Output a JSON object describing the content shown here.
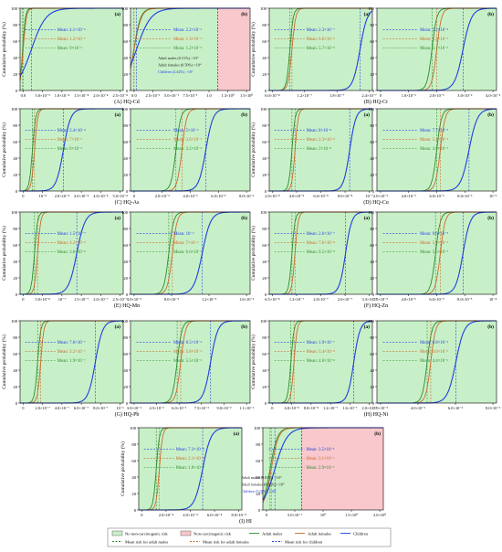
{
  "colors": {
    "no_risk_bg": "#c8f0c8",
    "risk_bg": "#f8c8cc",
    "adult_males": "#2e8b2e",
    "adult_females": "#cc6a2a",
    "children": "#1f3fdf",
    "threshold": "#111111"
  },
  "shared": {
    "ylabel": "Cumulative probability (%)",
    "yticks": [
      "0",
      "20",
      "40",
      "60",
      "80",
      "100"
    ]
  },
  "legend": {
    "items": [
      {
        "label": "No non-carcinogenic risk",
        "kind": "fill-green"
      },
      {
        "label": "Non-carcinogenic risk",
        "kind": "fill-pink"
      },
      {
        "label": "Adult males",
        "kind": "line-green"
      },
      {
        "label": "Adult females",
        "kind": "line-orange"
      },
      {
        "label": "Children",
        "kind": "line-blue"
      },
      {
        "label": "Mean risk for adult males",
        "kind": "dash-green"
      },
      {
        "label": "Mean risk for adult females",
        "kind": "dash-orange"
      },
      {
        "label": "Mean risk for children",
        "kind": "dash-blue"
      }
    ]
  },
  "chart_data": [
    {
      "caption": "(A) HQ-Cd",
      "panel": "(a)",
      "type": "line",
      "xticks": [
        "0.0",
        "5.0×10⁻⁵",
        "1.0×10⁻⁴",
        "1.5×10⁻⁴",
        "2.0×10⁻⁴",
        "2.5×10⁻⁴"
      ],
      "means": [
        {
          "label": "Mean: 4.1×10⁻⁶",
          "cls": "c"
        },
        {
          "label": "Mean: 1.2×10⁻⁶",
          "cls": "f"
        },
        {
          "label": "Mean: 9×10⁻⁶",
          "cls": "m"
        }
      ]
    },
    {
      "caption": "",
      "panel": "(b)",
      "type": "line",
      "xticks": [
        "0.0",
        "2.5×10⁻¹",
        "5.0×10⁻¹",
        "7.5×10⁻¹",
        "1.0",
        "1.3×10⁰",
        "1.5×10⁰"
      ],
      "means": [
        {
          "label": "Mean: 2.2×10⁻²",
          "cls": "c"
        },
        {
          "label": "Mean: 1.3×10⁻²",
          "cls": "f"
        },
        {
          "label": "Mean: 1.2×10⁻²",
          "cls": "m"
        }
      ],
      "risk": [
        "Adult males (0.31%) >10⁰",
        "Adult females (0.50%) >10⁰",
        "Children (2.42%) >10⁰"
      ]
    },
    {
      "caption": "(B) HQ-Cr",
      "panel": "(a)",
      "type": "line",
      "xticks": [
        "6.0×10⁻⁸",
        "1.2×10⁻⁷",
        "1.8×10⁻⁷",
        "2.4×10⁻⁷"
      ],
      "means": [
        {
          "label": "Mean: 2.3×10⁻⁷",
          "cls": "c"
        },
        {
          "label": "Mean: 6.6×10⁻⁸",
          "cls": "f"
        },
        {
          "label": "Mean: 5.7×10⁻⁸",
          "cls": "m"
        }
      ]
    },
    {
      "caption": "",
      "panel": "(b)",
      "type": "line",
      "xticks": [
        "0",
        "1.0×10⁻²",
        "2.0×10⁻²",
        "3.0×10⁻²",
        "4.0×10⁻²"
      ],
      "means": [
        {
          "label": "Mean: 3.2×10⁻²",
          "cls": "c"
        },
        {
          "label": "Mean: 2.2×10⁻²",
          "cls": "f"
        },
        {
          "label": "Mean: 2.1×10⁻²",
          "cls": "m"
        }
      ]
    },
    {
      "caption": "(C) HQ-As",
      "panel": "(a)",
      "type": "line",
      "xticks": [
        "0",
        "10⁻⁴",
        "2.0×10⁻⁴",
        "3.0×10⁻⁴",
        "4.0×10⁻⁴",
        "5.0×10⁻⁴"
      ],
      "means": [
        {
          "label": "Mean: 2.4×10⁻⁴",
          "cls": "c"
        },
        {
          "label": "Mean: 7×10⁻⁵",
          "cls": "f"
        },
        {
          "label": "Mean: 6×10⁻⁵",
          "cls": "m"
        }
      ]
    },
    {
      "caption": "",
      "panel": "(b)",
      "type": "line",
      "xticks": [
        "0",
        "2.0×10⁻³",
        "4.0×10⁻³",
        "6.0×10⁻³",
        "8.0×10⁻³"
      ],
      "means": [
        {
          "label": "Mean: 5×10⁻³",
          "cls": "c"
        },
        {
          "label": "Mean: 3.6×10⁻³",
          "cls": "f"
        },
        {
          "label": "Mean: 3.2×10⁻³",
          "cls": "m"
        }
      ]
    },
    {
      "caption": "(D) HQ-Cu",
      "panel": "(a)",
      "type": "line",
      "xticks": [
        "2.0×10⁻⁸",
        "4.0×10⁻⁸",
        "6.0×10⁻⁸",
        "8.0×10⁻⁸",
        "10⁻⁷"
      ],
      "means": [
        {
          "label": "Mean: 8×10⁻⁸",
          "cls": "c"
        },
        {
          "label": "Mean: 2.3×10⁻⁸",
          "cls": "f"
        },
        {
          "label": "Mean: 2×10⁻⁸",
          "cls": "m"
        }
      ]
    },
    {
      "caption": "",
      "panel": "(b)",
      "type": "line",
      "xticks": [
        "2.0×10⁻³",
        "4.0×10⁻³",
        "6.0×10⁻³",
        "8.0×10⁻³",
        "10⁻²"
      ],
      "means": [
        {
          "label": "Mean: 7.7×10⁻³",
          "cls": "c"
        },
        {
          "label": "Mean: 5.2×10⁻³",
          "cls": "f"
        },
        {
          "label": "Mean: 4.9×10⁻³",
          "cls": "m"
        }
      ]
    },
    {
      "caption": "(E) HQ-Mn",
      "panel": "(a)",
      "type": "line",
      "xticks": [
        "0",
        "5.0×10⁻⁸",
        "10⁻⁷",
        "1.5×10⁻⁷",
        "2.0×10⁻⁷",
        "2.5×10⁻⁷"
      ],
      "means": [
        {
          "label": "Mean: 1.5×10⁻⁷",
          "cls": "c"
        },
        {
          "label": "Mean: 4.2×10⁻⁸",
          "cls": "f"
        },
        {
          "label": "Mean: 3.6×10⁻⁸",
          "cls": "m"
        }
      ]
    },
    {
      "caption": "",
      "panel": "(b)",
      "type": "line",
      "xticks": [
        "4.0×10⁻³",
        "8.0×10⁻³",
        "1.2×10⁻²",
        "1.6×10⁻²"
      ],
      "means": [
        {
          "label": "Mean: 10⁻²",
          "cls": "c"
        },
        {
          "label": "Mean: 7×10⁻³",
          "cls": "f"
        },
        {
          "label": "Mean: 6.6×10⁻³",
          "cls": "m"
        }
      ]
    },
    {
      "caption": "(F) HQ-Zn",
      "panel": "(a)",
      "type": "line",
      "xticks": [
        "6.5×10⁻⁸",
        "1.3×10⁻⁷",
        "2.0×10⁻⁷",
        "2.6×10⁻⁷",
        "3.3×10⁻⁷"
      ],
      "means": [
        {
          "label": "Mean: 2.6×10⁻⁷",
          "cls": "c"
        },
        {
          "label": "Mean: 7.6×10⁻⁸",
          "cls": "f"
        },
        {
          "label": "Mean: 6.5×10⁻⁸",
          "cls": "m"
        }
      ]
    },
    {
      "caption": "",
      "panel": "(b)",
      "type": "line",
      "xticks": [
        "2.0×10⁻⁵",
        "4.0×10⁻⁵",
        "6.0×10⁻⁵",
        "8.0×10⁻⁵",
        "10⁻⁴"
      ],
      "means": [
        {
          "label": "Mean: 8.6×10⁻⁵",
          "cls": "c"
        },
        {
          "label": "Mean: 5.9×10⁻⁵",
          "cls": "f"
        },
        {
          "label": "Mean: 5.5×10⁻⁵",
          "cls": "m"
        }
      ]
    },
    {
      "caption": "(G) HQ-Pb",
      "panel": "(a)",
      "type": "line",
      "xticks": [
        "0",
        "2.0×10⁻⁷",
        "4.0×10⁻⁷",
        "6.0×10⁻⁷",
        "8.0×10⁻⁷",
        "10⁻⁶"
      ],
      "means": [
        {
          "label": "Mean: 7.6×10⁻⁷",
          "cls": "c"
        },
        {
          "label": "Mean: 2.2×10⁻⁷",
          "cls": "f"
        },
        {
          "label": "Mean: 1.9×10⁻⁷",
          "cls": "m"
        }
      ]
    },
    {
      "caption": "",
      "panel": "(b)",
      "type": "line",
      "xticks": [
        "3.0×10⁻²",
        "4.5×10⁻²",
        "6.0×10⁻²",
        "7.5×10⁻²",
        "9.0×10⁻²",
        "1.1×10⁻¹"
      ],
      "means": [
        {
          "label": "Mean: 8.5×10⁻²",
          "cls": "c"
        },
        {
          "label": "Mean: 5.8×10⁻²",
          "cls": "f"
        },
        {
          "label": "Mean: 5.5×10⁻²",
          "cls": "m"
        }
      ]
    },
    {
      "caption": "(H) HQ-Ni",
      "panel": "(a)",
      "type": "line",
      "xticks": [
        "0",
        "4.0×10⁻⁸",
        "8.0×10⁻⁸",
        "1.2×10⁻⁷",
        "1.6×10⁻⁷",
        "2.0×10⁻⁷"
      ],
      "means": [
        {
          "label": "Mean: 1.9×10⁻⁷",
          "cls": "c"
        },
        {
          "label": "Mean: 5.4×10⁻⁸",
          "cls": "f"
        },
        {
          "label": "Mean: 4.6×10⁻⁸",
          "cls": "m"
        }
      ]
    },
    {
      "caption": "",
      "panel": "(b)",
      "type": "line",
      "xticks": [
        "2.0×10⁻³",
        "4.0×10⁻³",
        "6.0×10⁻³",
        "8.0×10⁻³"
      ],
      "means": [
        {
          "label": "Mean: 6.8×10⁻³",
          "cls": "c"
        },
        {
          "label": "Mean: 4.6×10⁻³",
          "cls": "f"
        },
        {
          "label": "Mean: 4.4×10⁻³",
          "cls": "m"
        }
      ]
    },
    {
      "caption": "(I) HI",
      "panel": "(a)",
      "type": "line",
      "xticks": [
        "0",
        "2.0×10⁻⁴",
        "4.0×10⁻⁴",
        "6.0×10⁻⁴",
        "8.0×10⁻⁴"
      ],
      "means": [
        {
          "label": "Mean: 7.3×10⁻⁴",
          "cls": "c"
        },
        {
          "label": "Mean: 2.1×10⁻⁴",
          "cls": "f"
        },
        {
          "label": "Mean: 1.8×10⁻⁴",
          "cls": "m"
        }
      ]
    },
    {
      "caption": "",
      "panel": "(b)",
      "type": "line",
      "xticks": [
        "0",
        "5.0×10⁻¹",
        "10⁰",
        "1.5×10⁰",
        "2.0×10⁰"
      ],
      "means": [
        {
          "label": "Mean: 3.5×10⁻¹",
          "cls": "c"
        },
        {
          "label": "Mean: 3.1×10⁻¹",
          "cls": "f"
        },
        {
          "label": "Mean: 2.9×10⁻¹",
          "cls": "m"
        }
      ],
      "risk": [
        "Adult males (0.83%) >10⁰",
        "Adult females (0.96%) >10⁰",
        "Children (5.08%) >10⁰"
      ]
    }
  ]
}
